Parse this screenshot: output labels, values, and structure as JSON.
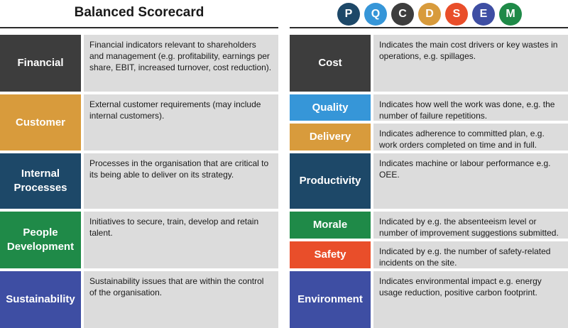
{
  "left": {
    "title": "Balanced Scorecard",
    "rows": [
      {
        "label": "Financial",
        "description": "Financial indicators relevant to shareholders and management  (e.g. profitability, earnings per share, EBIT, increased turnover, cost reduction).",
        "color": "#3d3d3d"
      },
      {
        "label": "Customer",
        "description": "External customer requirements (may include internal customers).",
        "color": "#d89b3c"
      },
      {
        "label": "Internal Processes",
        "description": "Processes in the organisation that are critical to its being able to deliver on its strategy.",
        "color": "#1d4868"
      },
      {
        "label": "People Development",
        "description": "Initiatives to secure, train, develop and retain talent.",
        "color": "#1f8a48"
      },
      {
        "label": "Sustainability",
        "description": "Sustainability issues that are within the control of the organisation.",
        "color": "#3e4ea3"
      }
    ]
  },
  "right": {
    "circles": [
      {
        "letter": "P",
        "color": "#1d4868"
      },
      {
        "letter": "Q",
        "color": "#3696d8"
      },
      {
        "letter": "C",
        "color": "#3d3d3d"
      },
      {
        "letter": "D",
        "color": "#d89b3c"
      },
      {
        "letter": "S",
        "color": "#e94e2a"
      },
      {
        "letter": "E",
        "color": "#3e4ea3"
      },
      {
        "letter": "M",
        "color": "#1f8a48"
      }
    ],
    "rows": [
      {
        "label": "Cost",
        "description": "Indicates the main cost drivers or key wastes in operations, e.g.  spillages.",
        "color": "#3d3d3d"
      },
      {
        "label": "Quality",
        "description": "Indicates how well the work was done, e.g. the number of failure repetitions.",
        "color": "#3696d8"
      },
      {
        "label": "Delivery",
        "description": "Indicates adherence to committed plan, e.g. work orders completed on time and in full.",
        "color": "#d89b3c"
      },
      {
        "label": "Productivity",
        "description": "Indicates machine or labour performance e.g. OEE.",
        "color": "#1d4868"
      },
      {
        "label": "Morale",
        "description": "Indicated by e.g. the absenteeism level or number of improvement suggestions submitted.",
        "color": "#1f8a48"
      },
      {
        "label": "Safety",
        "description": "Indicated by e.g. the number of safety-related incidents on the site.",
        "color": "#e94e2a"
      },
      {
        "label": "Environment",
        "description": "Indicates environmental impact e.g. energy usage reduction, positive carbon footprint.",
        "color": "#3e4ea3"
      }
    ]
  }
}
